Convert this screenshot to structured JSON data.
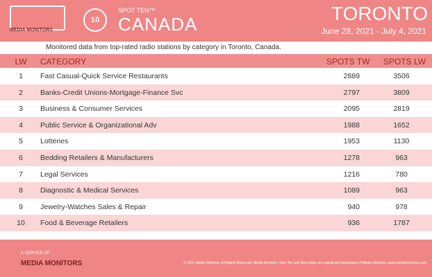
{
  "header": {
    "brand": "MEDIA MONITORS",
    "badge": "10",
    "product": "SPOT TEN™",
    "country": "CANADA",
    "city": "TORONTO",
    "dates": "June 28, 2021 - July 4, 2021"
  },
  "subtitle": "Monitored data from top-rated radio stations by category in Toronto, Canada.",
  "table": {
    "columns": [
      "LW",
      "CATEGORY",
      "SPOTS TW",
      "SPOTS LW"
    ],
    "rows": [
      [
        1,
        "Fast Casual-Quick Service Restaurants",
        2889,
        3506
      ],
      [
        2,
        "Banks-Credit Unions-Mortgage-Finance Svc",
        2797,
        3809
      ],
      [
        3,
        "Business & Consumer Services",
        2095,
        2819
      ],
      [
        4,
        "Public Service & Organizational Adv",
        1988,
        1652
      ],
      [
        5,
        "Lotteries",
        1953,
        1130
      ],
      [
        6,
        "Bedding Retailers & Manufacturers",
        1278,
        963
      ],
      [
        7,
        "Legal Services",
        1216,
        780
      ],
      [
        8,
        "Diagnostic & Medical Services",
        1089,
        963
      ],
      [
        9,
        "Jewelry-Watches Sales & Repair",
        940,
        978
      ],
      [
        10,
        "Food & Beverage Retailers",
        936,
        1787
      ]
    ]
  },
  "footer": {
    "service": "A SERVICE OF",
    "brand": "MEDIA MONITORS",
    "copyright": "© 2021 Media Monitors. All Rights Reserved. Media Monitors, Spot Ten and their logos are registered trademarks of Media Monitors. www.mediamonitors.com"
  }
}
